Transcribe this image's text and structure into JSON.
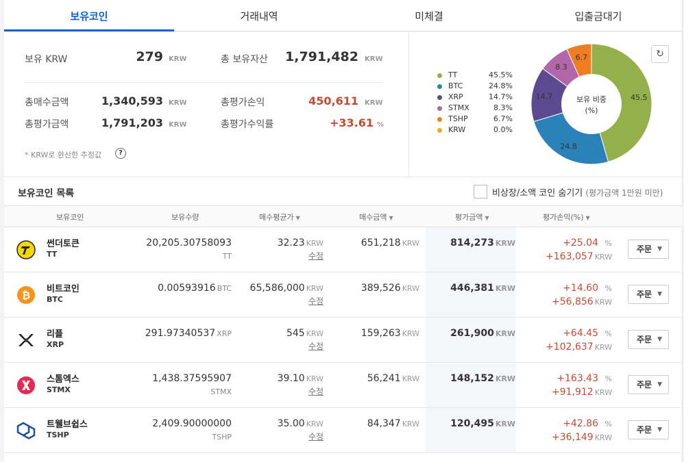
{
  "tabs": [
    {
      "label": "보유코인",
      "active": true
    },
    {
      "label": "거래내역",
      "active": false
    },
    {
      "label": "미체결",
      "active": false
    },
    {
      "label": "입출금대기",
      "active": false
    }
  ],
  "summary": {
    "krw_label": "보유 KRW",
    "krw_value": "279",
    "total_asset_label": "총 보유자산",
    "total_asset_value": "1,791,482",
    "total_buy_label": "총매수금액",
    "total_buy_value": "1,340,593",
    "total_pl_label": "총평가손익",
    "total_pl_value": "450,611",
    "total_eval_label": "총평가금액",
    "total_eval_value": "1,791,203",
    "total_rate_label": "총평가수익률",
    "total_rate_value": "+33.61",
    "unit_krw": "KRW",
    "unit_pct": "%",
    "note": "* KRW로 환산한 추정값",
    "help": "?"
  },
  "chart_data": {
    "type": "pie",
    "center_label": "보유 비중",
    "center_unit": "(%)",
    "legend": [
      {
        "name": "TT",
        "pct": "45.5%",
        "color": "#93b04a"
      },
      {
        "name": "BTC",
        "pct": "24.8%",
        "color": "#2a82b8"
      },
      {
        "name": "XRP",
        "pct": "14.7%",
        "color": "#5b4a8f"
      },
      {
        "name": "STMX",
        "pct": "8.3%",
        "color": "#b267a8"
      },
      {
        "name": "TSHP",
        "pct": "6.7%",
        "color": "#ee7d24"
      },
      {
        "name": "KRW",
        "pct": "0.0%",
        "color": "#f5a623"
      }
    ],
    "slices": [
      {
        "name": "TT",
        "value": 45.5,
        "label": "45.5",
        "color": "#93b04a"
      },
      {
        "name": "BTC",
        "value": 24.8,
        "label": "24.8",
        "color": "#2a82b8"
      },
      {
        "name": "XRP",
        "value": 14.7,
        "label": "14.7",
        "color": "#5b4a8f"
      },
      {
        "name": "STMX",
        "value": 8.3,
        "label": "8.3",
        "color": "#b267a8"
      },
      {
        "name": "TSHP",
        "value": 6.7,
        "label": "6.7",
        "color": "#ee7d24"
      },
      {
        "name": "KRW",
        "value": 0.0,
        "label": "",
        "color": "#f5a623"
      }
    ]
  },
  "refresh_icon": "↻",
  "holdings": {
    "title": "보유코인 목록",
    "hide_label": "비상장/소액 코인 숨기기",
    "hide_sub": "(평가금액 1만원 미만)",
    "headers": {
      "coin": "보유코인",
      "qty": "보유수량",
      "avg": "매수평균가",
      "buy": "매수금액",
      "eval": "평가금액",
      "pl": "평가손익(%)"
    },
    "unit_krw": "KRW",
    "edit_label": "수정",
    "order_label": "주문",
    "rows": [
      {
        "name": "썬더토큰",
        "symbol": "TT",
        "icon": "thundertoken-icon",
        "qty": "20,205.30758093",
        "qty_unit": "TT",
        "avg": "32.23",
        "buy": "651,218",
        "eval": "814,273",
        "pct": "+25.04",
        "pl": "+163,057"
      },
      {
        "name": "비트코인",
        "symbol": "BTC",
        "icon": "bitcoin-icon",
        "qty": "0.00593916",
        "qty_unit": "BTC",
        "avg": "65,586,000",
        "buy": "389,526",
        "eval": "446,381",
        "pct": "+14.60",
        "pl": "+56,856"
      },
      {
        "name": "리플",
        "symbol": "XRP",
        "icon": "ripple-icon",
        "qty": "291.97340537",
        "qty_unit": "XRP",
        "avg": "545",
        "buy": "159,263",
        "eval": "261,900",
        "pct": "+64.45",
        "pl": "+102,637"
      },
      {
        "name": "스톰엑스",
        "symbol": "STMX",
        "icon": "stormx-icon",
        "qty": "1,438.37595907",
        "qty_unit": "STMX",
        "avg": "39.10",
        "buy": "56,241",
        "eval": "148,152",
        "pct": "+163.43",
        "pl": "+91,912"
      },
      {
        "name": "트웰브쉽스",
        "symbol": "TSHP",
        "icon": "twelveships-icon",
        "qty": "2,409.90000000",
        "qty_unit": "TSHP",
        "avg": "35.00",
        "buy": "84,347",
        "eval": "120,495",
        "pct": "+42.86",
        "pl": "+36,149"
      }
    ]
  }
}
